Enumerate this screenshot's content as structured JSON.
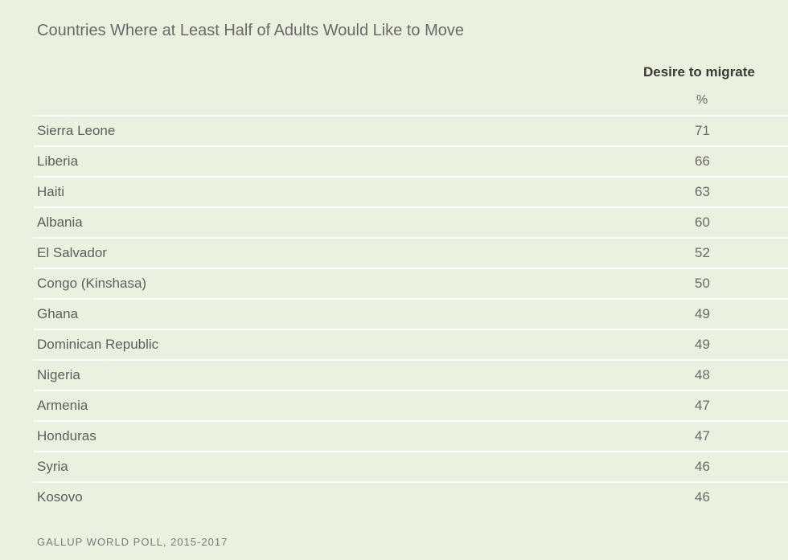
{
  "chart_data": {
    "type": "table",
    "title": "Countries Where at Least Half of Adults Would Like to Move",
    "column_header": "Desire to migrate",
    "unit": "%",
    "rows": [
      {
        "country": "Sierra Leone",
        "value": 71
      },
      {
        "country": "Liberia",
        "value": 66
      },
      {
        "country": "Haiti",
        "value": 63
      },
      {
        "country": "Albania",
        "value": 60
      },
      {
        "country": "El Salvador",
        "value": 52
      },
      {
        "country": "Congo (Kinshasa)",
        "value": 50
      },
      {
        "country": "Ghana",
        "value": 49
      },
      {
        "country": "Dominican Republic",
        "value": 49
      },
      {
        "country": "Nigeria",
        "value": 48
      },
      {
        "country": "Armenia",
        "value": 47
      },
      {
        "country": "Honduras",
        "value": 47
      },
      {
        "country": "Syria",
        "value": 46
      },
      {
        "country": "Kosovo",
        "value": 46
      }
    ],
    "source": "GALLUP WORLD POLL, 2015-2017"
  }
}
